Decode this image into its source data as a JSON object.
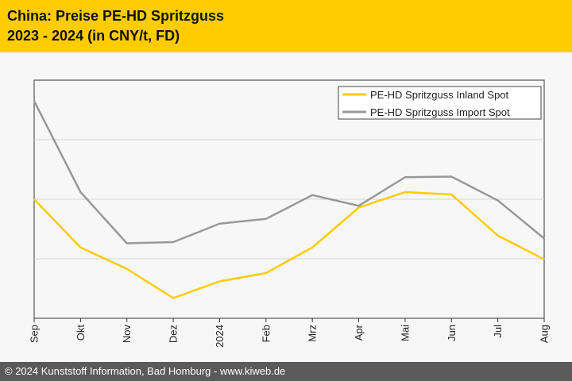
{
  "header": {
    "title_line1": "China: Preise PE-HD Spritzguss",
    "title_line2": "2023 - 2024 (in CNY/t, FD)"
  },
  "footer": {
    "text": "© 2024 Kunststoff Information, Bad Homburg - www.kiweb.de"
  },
  "colors": {
    "header_bg": "#ffcc00",
    "inland": "#ffcc00",
    "import": "#999999",
    "footer_bg": "#5a5a5a"
  },
  "chart_data": {
    "type": "line",
    "title": "China: Preise PE-HD Spritzguss 2023 - 2024 (in CNY/t, FD)",
    "xlabel": "",
    "ylabel": "",
    "categories": [
      "Sep",
      "Okt",
      "Nov",
      "Dez",
      "2024",
      "Feb",
      "Mrz",
      "Apr",
      "Mai",
      "Jun",
      "Jul",
      "Aug"
    ],
    "ylim": [
      0,
      4
    ],
    "ytick_labels_shown": false,
    "grid_values": [
      1,
      2,
      3
    ],
    "legend_position": "top-right",
    "series": [
      {
        "name": "PE-HD Spritzguss Inland Spot",
        "color": "#ffcc00",
        "values": [
          2.0,
          1.19,
          0.83,
          0.34,
          0.62,
          0.76,
          1.19,
          1.86,
          2.12,
          2.08,
          1.39,
          0.99
        ]
      },
      {
        "name": "PE-HD Spritzguss Import Spot",
        "color": "#999999",
        "values": [
          3.65,
          2.12,
          1.26,
          1.28,
          1.59,
          1.67,
          2.07,
          1.89,
          2.37,
          2.38,
          1.98,
          1.34
        ]
      }
    ]
  }
}
